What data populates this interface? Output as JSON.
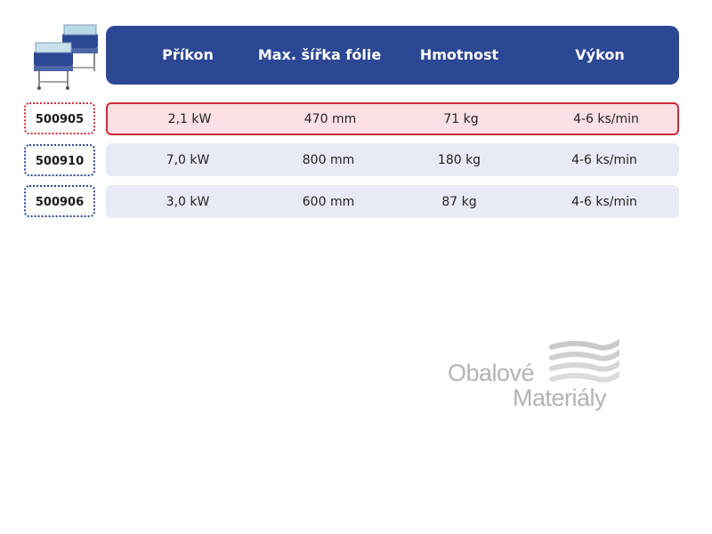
{
  "header": {
    "columns": [
      "Příkon",
      "Max. šířka fólie",
      "Hmotnost",
      "Výkon"
    ]
  },
  "rows": [
    {
      "code": "500905",
      "power": "2,1 kW",
      "max_width": "470 mm",
      "weight": "71 kg",
      "output": "4-6 ks/min",
      "selected": true
    },
    {
      "code": "500910",
      "power": "7,0 kW",
      "max_width": "800 mm",
      "weight": "180 kg",
      "output": "4-6 ks/min",
      "selected": false
    },
    {
      "code": "500906",
      "power": "3,0 kW",
      "max_width": "600 mm",
      "weight": "87 kg",
      "output": "4-6 ks/min",
      "selected": false
    }
  ],
  "logo": {
    "line1": "Obalové",
    "line2": "Materiály"
  },
  "colors": {
    "header_bg": "#2c4794",
    "row_bg": "#e8ebf5",
    "selected_row_bg": "#fde0e4",
    "selected_border": "#cc2b3b",
    "logo_gray": "#b3b3b3"
  },
  "icons": {
    "product_image": "shrink-wrapping-machine-image",
    "logo_mark": "wave-stripes-logo-mark"
  }
}
